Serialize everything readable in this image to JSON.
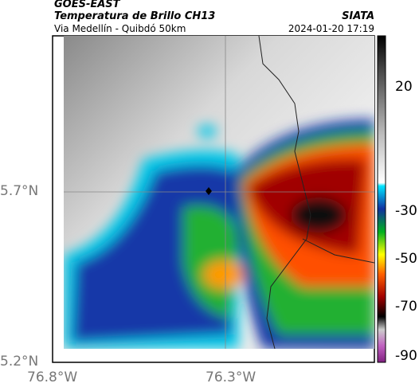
{
  "header": {
    "title": "GOES-EAST",
    "subtitle": "Temperatura de Brillo CH13",
    "location": "Via Medellín - Quibdó 50km",
    "source": "SIATA",
    "datetime": "2024-01-20 17:19"
  },
  "map": {
    "lat_ticks": [
      "5.7°N",
      "5.2°N"
    ],
    "lon_ticks": [
      "76.8°W",
      "76.3°W"
    ]
  },
  "colorbar": {
    "ticks": [
      20,
      -30,
      -50,
      -70,
      -90
    ]
  }
}
